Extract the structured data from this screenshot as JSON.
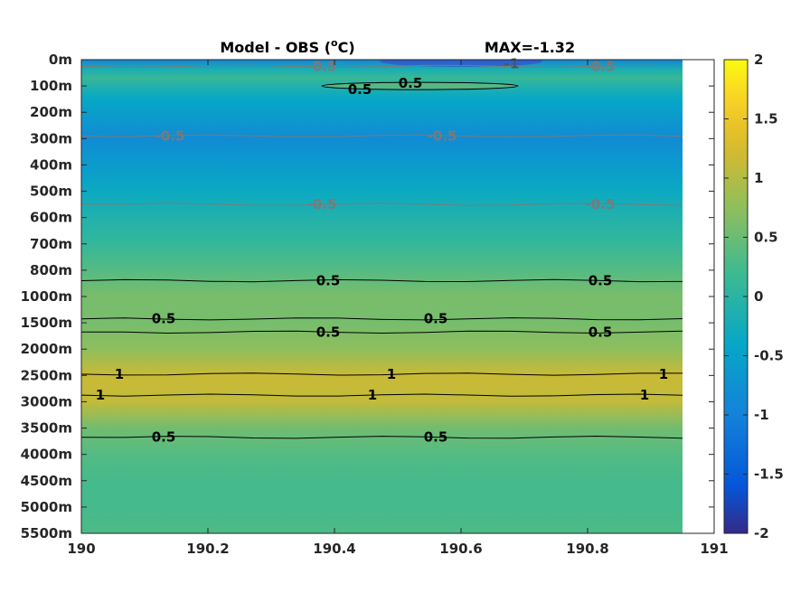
{
  "chart_data": {
    "type": "heatmap",
    "title": "Model - OBS (",
    "title_unit_sup": "o",
    "title_unit_tail": "C)",
    "max_label": "MAX=-1.32",
    "x": {
      "ticks": [
        190,
        190.2,
        190.4,
        190.6,
        190.8,
        191
      ],
      "tick_labels": [
        "190",
        "190.2",
        "190.4",
        "190.6",
        "190.8",
        "191"
      ],
      "lim": [
        190,
        191
      ],
      "data_extent": [
        190,
        190.95
      ]
    },
    "y": {
      "tick_labels": [
        "0m",
        "100m",
        "200m",
        "300m",
        "400m",
        "500m",
        "600m",
        "700m",
        "800m",
        "1000m",
        "1500m",
        "2000m",
        "2500m",
        "3000m",
        "3500m",
        "4000m",
        "4500m",
        "5000m",
        "5500m"
      ],
      "reversed": true
    },
    "colorbar": {
      "lim": [
        -2,
        2
      ],
      "ticks": [
        2,
        1.5,
        1,
        0.5,
        0,
        -0.5,
        -1,
        -1.5,
        -2
      ],
      "tick_labels": [
        "2",
        "1.5",
        "1",
        "0.5",
        "0",
        "-0.5",
        "-1",
        "-1.5",
        "-2"
      ],
      "colormap": "parula"
    },
    "profile": [
      {
        "level": 0,
        "value": -0.95
      },
      {
        "level": 0.35,
        "value": -0.2
      },
      {
        "level": 0.7,
        "value": 0.15
      },
      {
        "level": 1.0,
        "value": -0.1
      },
      {
        "level": 1.5,
        "value": -0.4
      },
      {
        "level": 2.0,
        "value": -0.55
      },
      {
        "level": 3.0,
        "value": -0.85
      },
      {
        "level": 4.0,
        "value": -0.6
      },
      {
        "level": 5.0,
        "value": -0.35
      },
      {
        "level": 6.0,
        "value": -0.1
      },
      {
        "level": 7.0,
        "value": 0.1
      },
      {
        "level": 8.0,
        "value": 0.35
      },
      {
        "level": 9.0,
        "value": 0.6
      },
      {
        "level": 10.0,
        "value": 0.58
      },
      {
        "level": 11.0,
        "value": 0.75
      },
      {
        "level": 12.0,
        "value": 1.15
      },
      {
        "level": 13.0,
        "value": 1.1
      },
      {
        "level": 14.0,
        "value": 0.55
      },
      {
        "level": 15.0,
        "value": 0.35
      },
      {
        "level": 16.0,
        "value": 0.25
      },
      {
        "level": 17.0,
        "value": 0.25
      },
      {
        "level": 18.0,
        "value": 0.3
      }
    ],
    "contours": [
      {
        "level": 0.25,
        "value": -0.5,
        "color": "#7a7a7a",
        "labels": [
          {
            "x": 190.38,
            "text": "-0.5"
          },
          {
            "x": 190.82,
            "text": "-0.5"
          }
        ]
      },
      {
        "level": 2.9,
        "value": -0.5,
        "color": "#7a7a7a",
        "labels": [
          {
            "x": 190.14,
            "text": "-0.5"
          },
          {
            "x": 190.57,
            "text": "-0.5"
          }
        ]
      },
      {
        "level": 5.5,
        "value": -0.5,
        "color": "#7a7a7a",
        "labels": [
          {
            "x": 190.38,
            "text": "-0.5"
          },
          {
            "x": 190.82,
            "text": "-0.5"
          }
        ]
      },
      {
        "level": 8.4,
        "value": 0.5,
        "color": "#000000",
        "labels": [
          {
            "x": 190.39,
            "text": "0.5"
          },
          {
            "x": 190.82,
            "text": "0.5"
          }
        ]
      },
      {
        "level": 9.85,
        "value": 0.5,
        "color": "#000000",
        "labels": [
          {
            "x": 190.13,
            "text": "0.5"
          },
          {
            "x": 190.56,
            "text": "0.5"
          }
        ]
      },
      {
        "level": 10.35,
        "value": 0.5,
        "color": "#000000",
        "labels": [
          {
            "x": 190.39,
            "text": "0.5"
          },
          {
            "x": 190.82,
            "text": "0.5"
          }
        ]
      },
      {
        "level": 11.95,
        "value": 1,
        "color": "#000000",
        "labels": [
          {
            "x": 190.06,
            "text": "1"
          },
          {
            "x": 190.49,
            "text": "1"
          },
          {
            "x": 190.92,
            "text": "1"
          }
        ]
      },
      {
        "level": 12.75,
        "value": 1,
        "color": "#000000",
        "labels": [
          {
            "x": 190.03,
            "text": "1"
          },
          {
            "x": 190.46,
            "text": "1"
          },
          {
            "x": 190.89,
            "text": "1"
          }
        ]
      },
      {
        "level": 14.35,
        "value": 0.5,
        "color": "#000000",
        "labels": [
          {
            "x": 190.13,
            "text": "0.5"
          },
          {
            "x": 190.56,
            "text": "0.5"
          }
        ]
      }
    ],
    "near_surface_features": [
      {
        "kind": "closed-contour",
        "value": 0.5,
        "x_range": [
          190.38,
          190.69
        ],
        "level": 1.0,
        "labels": [
          {
            "x": 190.44,
            "text": "0.5"
          },
          {
            "x": 190.52,
            "text": "0.5"
          }
        ]
      },
      {
        "kind": "label",
        "value": -1,
        "x": 190.68,
        "level": 0.15,
        "text": "-1"
      }
    ]
  }
}
